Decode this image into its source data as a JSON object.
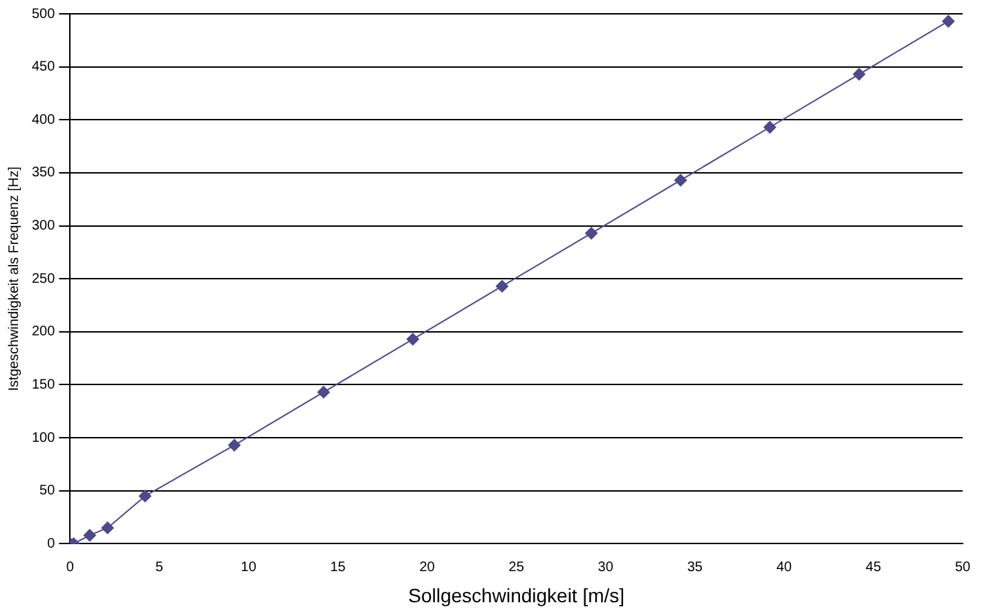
{
  "chart_data": {
    "type": "line",
    "xlabel": "Sollgeschwindigkeit [m/s]",
    "ylabel": "Istgeschwindigkeit als Frequenz [Hz]",
    "x": [
      0,
      0.2,
      1.1,
      2.1,
      4.2,
      9.2,
      14.2,
      19.2,
      24.2,
      29.2,
      34.2,
      39.2,
      44.2,
      49.2
    ],
    "series": [
      {
        "color": "#4a4a8c",
        "values": [
          0,
          0,
          8,
          15,
          45,
          93,
          143,
          193,
          243,
          293,
          343,
          393,
          443,
          493
        ]
      }
    ],
    "xlim": [
      0,
      50
    ],
    "xticks": [
      0,
      5,
      10,
      15,
      20,
      25,
      30,
      35,
      40,
      45,
      50
    ],
    "ylim": [
      0,
      500
    ],
    "yticks": [
      0,
      50,
      100,
      150,
      200,
      250,
      300,
      350,
      400,
      450,
      500
    ],
    "grid": "y",
    "marker": "diamond",
    "legend": false
  }
}
